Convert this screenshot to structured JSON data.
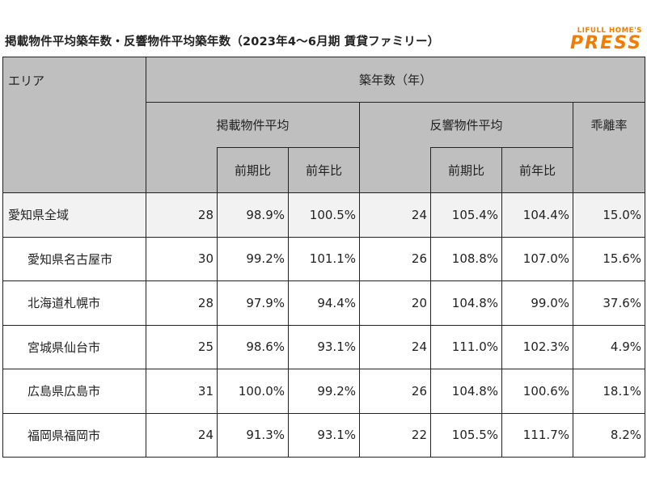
{
  "title": "掲載物件平均築年数・反響物件平均築年数（2023年4～6月期 賃貸ファミリー）",
  "logo": {
    "top": "LIFULL HOME'S",
    "main": "PRESS"
  },
  "table": {
    "area_header": "エリア",
    "group_header": "築年数（年）",
    "listed_header": "掲載物件平均",
    "response_header": "反響物件平均",
    "gap_header": "乖離率",
    "qoq_header": "前期比",
    "yoy_header": "前年比",
    "rows": [
      {
        "area": "愛知県全域",
        "listed": "28",
        "listed_qoq": "98.9%",
        "listed_yoy": "100.5%",
        "resp": "24",
        "resp_qoq": "105.4%",
        "resp_yoy": "104.4%",
        "gap": "15.0%"
      },
      {
        "area": "愛知県名古屋市",
        "listed": "30",
        "listed_qoq": "99.2%",
        "listed_yoy": "101.1%",
        "resp": "26",
        "resp_qoq": "108.8%",
        "resp_yoy": "107.0%",
        "gap": "15.6%"
      },
      {
        "area": "北海道札幌市",
        "listed": "28",
        "listed_qoq": "97.9%",
        "listed_yoy": "94.4%",
        "resp": "20",
        "resp_qoq": "104.8%",
        "resp_yoy": "99.0%",
        "gap": "37.6%"
      },
      {
        "area": "宮城県仙台市",
        "listed": "25",
        "listed_qoq": "98.6%",
        "listed_yoy": "93.1%",
        "resp": "24",
        "resp_qoq": "111.0%",
        "resp_yoy": "102.3%",
        "gap": "4.9%"
      },
      {
        "area": "広島県広島市",
        "listed": "31",
        "listed_qoq": "100.0%",
        "listed_yoy": "99.2%",
        "resp": "26",
        "resp_qoq": "104.8%",
        "resp_yoy": "100.6%",
        "gap": "18.1%"
      },
      {
        "area": "福岡県福岡市",
        "listed": "24",
        "listed_qoq": "91.3%",
        "listed_yoy": "93.1%",
        "resp": "22",
        "resp_qoq": "105.5%",
        "resp_yoy": "111.7%",
        "gap": "8.2%"
      }
    ]
  },
  "colors": {
    "header_bg": "#bfbfbf",
    "highlight_row_bg": "#f2f2f2",
    "logo": "#f07c00"
  }
}
